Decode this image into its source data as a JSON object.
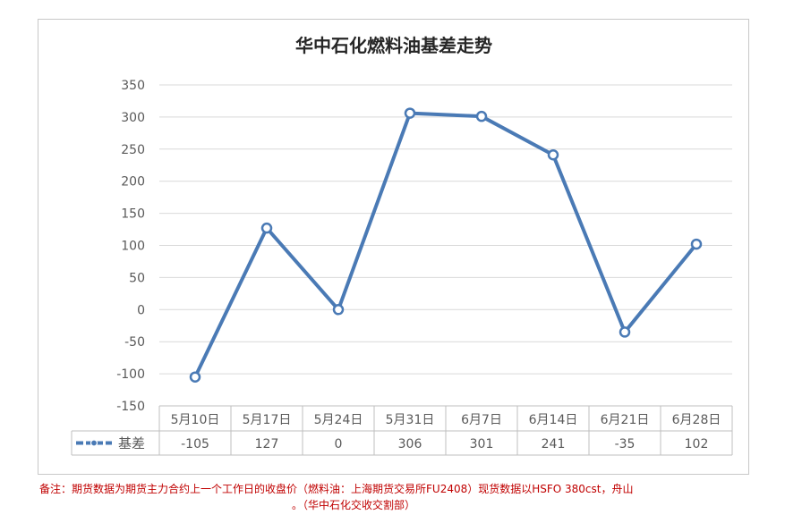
{
  "chart_data": {
    "type": "line",
    "title": "华中石化燃料油基差走势",
    "categories": [
      "5月10日",
      "5月17日",
      "5月24日",
      "5月31日",
      "6月7日",
      "6月14日",
      "6月21日",
      "6月28日"
    ],
    "series": [
      {
        "name": "基差",
        "values": [
          -105,
          127,
          0,
          306,
          301,
          241,
          -35,
          102
        ]
      }
    ],
    "ylim": [
      -150,
      350
    ],
    "yticks": [
      350,
      300,
      250,
      200,
      150,
      100,
      50,
      0,
      -50,
      -100,
      -150
    ],
    "grid": true,
    "data_table": true,
    "legend": "data-table",
    "xlabel": "",
    "ylabel": ""
  },
  "colors": {
    "line": "#4a7ab5",
    "grid": "#d9d9d9",
    "axis_text": "#595959",
    "note": "#c00000"
  },
  "note": {
    "line1": "备注：期货数据为期货主力合约上一个工作日的收盘价（燃料油：上海期货交易所FU2408）现货数据以HSFO 380cst，舟山",
    "line2": "。（华中石化交收交割部）"
  }
}
